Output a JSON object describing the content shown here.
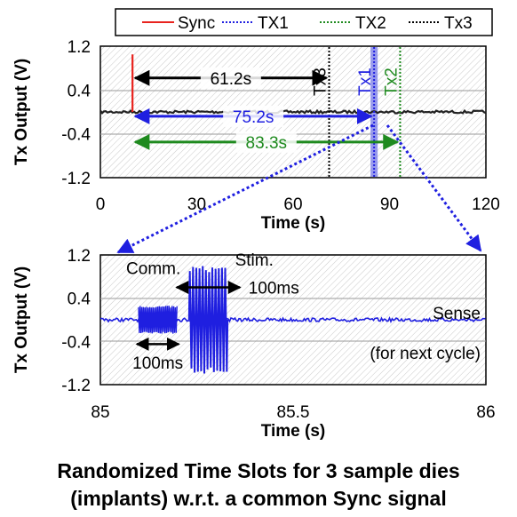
{
  "legend": {
    "items": [
      {
        "label": "Sync",
        "color": "#e8231e",
        "dash": "solid"
      },
      {
        "label": "TX1",
        "color": "#1f1fe0",
        "dash": "dot"
      },
      {
        "label": "TX2",
        "color": "#1e8a1e",
        "dash": "dot"
      },
      {
        "label": "Tx3",
        "color": "#000000",
        "dash": "dot"
      }
    ]
  },
  "chart_data": [
    {
      "type": "line",
      "title": "",
      "xlabel": "Time (s)",
      "ylabel": "Tx Output (V)",
      "xlim": [
        0,
        120
      ],
      "ylim": [
        -1.2,
        1.2
      ],
      "x_ticks": [
        "0",
        "30",
        "60",
        "90",
        "120"
      ],
      "y_ticks": [
        "1.2",
        "0.4",
        "-0.4",
        "-1.2"
      ],
      "series": [
        {
          "name": "Sync",
          "color": "#e8231e",
          "event_time": 10,
          "peak": 1.05
        },
        {
          "name": "Tx3",
          "color": "#000000",
          "event_time": 71.2,
          "label": "Tx3"
        },
        {
          "name": "TX1",
          "color": "#1f1fe0",
          "event_time": 85.2,
          "label": "Tx1"
        },
        {
          "name": "TX2",
          "color": "#1e8a1e",
          "event_time": 93.3,
          "label": "Tx2"
        }
      ],
      "annotations": [
        {
          "text": "61.2s",
          "from": 10,
          "to": 71.2,
          "y": 0.62,
          "color": "#000000"
        },
        {
          "text": "75.2s",
          "from": 10,
          "to": 85.2,
          "y": -0.08,
          "color": "#1f1fe0"
        },
        {
          "text": "83.3s",
          "from": 10,
          "to": 93.3,
          "y": -0.55,
          "color": "#1e8a1e"
        }
      ]
    },
    {
      "type": "line",
      "title": "",
      "xlabel": "Time (s)",
      "ylabel": "Tx Output (V)",
      "xlim": [
        85,
        86
      ],
      "ylim": [
        -1.2,
        1.2
      ],
      "x_ticks": [
        "85",
        "85.5",
        "86"
      ],
      "y_ticks": [
        "1.2",
        "0.4",
        "-0.4",
        "-1.2"
      ],
      "series": [
        {
          "name": "TX1",
          "color": "#1f1fe0"
        }
      ],
      "bursts": [
        {
          "label": "Comm.",
          "start": 85.099,
          "end": 85.199,
          "amplitude": 0.26,
          "duration_text": "100ms"
        },
        {
          "label": "Stim.",
          "start": 85.23,
          "end": 85.33,
          "amplitude": 1.0,
          "duration_text": "100ms"
        }
      ],
      "sense_text": "Sense",
      "sense_sub": "(for next cycle)"
    }
  ],
  "caption": {
    "line1": "Randomized Time Slots for 3 sample dies",
    "line2": "(implants) w.r.t. a common Sync signal"
  }
}
